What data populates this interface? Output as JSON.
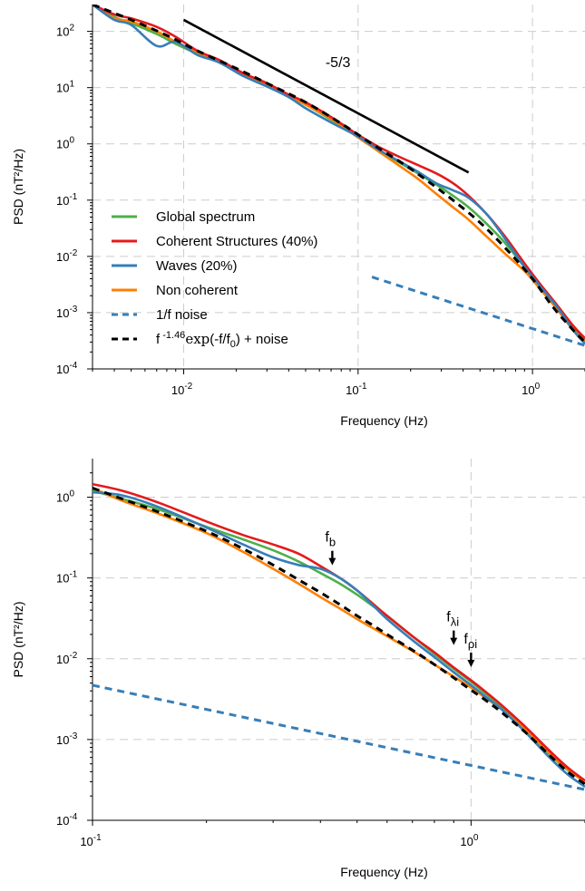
{
  "chart_data": [
    {
      "type": "line",
      "xscale": "log",
      "yscale": "log",
      "xlim": [
        0.003,
        2.0
      ],
      "ylim": [
        0.0001,
        300
      ],
      "xlabel": "Frequency (Hz)",
      "ylabel": "PSD (nT²/Hz)",
      "grid": true,
      "x_ticks": [
        {
          "value": 0.01,
          "base": "10",
          "exp": "-2"
        },
        {
          "value": 0.1,
          "base": "10",
          "exp": "-1"
        },
        {
          "value": 1.0,
          "base": "10",
          "exp": "0"
        }
      ],
      "y_ticks": [
        {
          "value": 0.0001,
          "base": "10",
          "exp": "-4"
        },
        {
          "value": 0.001,
          "base": "10",
          "exp": "-3"
        },
        {
          "value": 0.01,
          "base": "10",
          "exp": "-2"
        },
        {
          "value": 0.1,
          "base": "10",
          "exp": "-1"
        },
        {
          "value": 1,
          "base": "10",
          "exp": "0"
        },
        {
          "value": 10,
          "base": "10",
          "exp": "1"
        },
        {
          "value": 100,
          "base": "10",
          "exp": "2"
        }
      ],
      "legend": {
        "placement": "lower-left",
        "entries": [
          {
            "label": "Global spectrum",
            "color": "#4daf4a",
            "dash": false
          },
          {
            "label": "Coherent Structures (40%)",
            "color": "#e41a1c",
            "dash": false
          },
          {
            "label": "Waves (20%)",
            "color": "#377eb8",
            "dash": false
          },
          {
            "label": "Non coherent",
            "color": "#ff7f00",
            "dash": false
          },
          {
            "label": "1/f noise",
            "color": "#377eb8",
            "dash": true
          },
          {
            "label": "f^{-1.46} exp(-f/f0) + noise",
            "color": "#000000",
            "dash": true
          }
        ],
        "fit_label_parts": {
          "f": "f",
          "exp_val": "-1.46",
          "exp_word": "exp",
          "rest": "(-f/f",
          "sub": "0",
          "tail": ") + noise"
        }
      },
      "slope_line": {
        "label": "-5/3",
        "x": [
          0.01,
          0.43
        ],
        "y": [
          160,
          0.31
        ]
      },
      "series": [
        {
          "name": "Global spectrum",
          "color": "#4daf4a",
          "dash": false,
          "x": [
            0.003,
            0.004,
            0.005,
            0.007,
            0.009,
            0.012,
            0.016,
            0.022,
            0.03,
            0.04,
            0.05,
            0.07,
            0.1,
            0.13,
            0.17,
            0.22,
            0.28,
            0.35,
            0.43,
            0.55,
            0.7,
            0.9,
            1.1,
            1.4,
            1.7,
            2.0
          ],
          "y": [
            300,
            180,
            140,
            90,
            60,
            40,
            28,
            17,
            11,
            7,
            5,
            2.7,
            1.35,
            0.8,
            0.48,
            0.3,
            0.19,
            0.12,
            0.075,
            0.037,
            0.017,
            0.0065,
            0.003,
            0.0012,
            0.00055,
            0.00032
          ]
        },
        {
          "name": "Coherent Structures (40%)",
          "color": "#e41a1c",
          "dash": false,
          "x": [
            0.003,
            0.004,
            0.005,
            0.007,
            0.009,
            0.012,
            0.016,
            0.022,
            0.03,
            0.04,
            0.05,
            0.07,
            0.1,
            0.13,
            0.17,
            0.22,
            0.28,
            0.35,
            0.43,
            0.55,
            0.7,
            0.9,
            1.1,
            1.4,
            1.7,
            2.0
          ],
          "y": [
            300,
            200,
            170,
            120,
            80,
            45,
            31,
            18,
            12,
            7.5,
            5.5,
            3,
            1.45,
            0.9,
            0.6,
            0.42,
            0.3,
            0.2,
            0.12,
            0.055,
            0.022,
            0.0075,
            0.0033,
            0.0013,
            0.0006,
            0.00035
          ]
        },
        {
          "name": "Waves (20%)",
          "color": "#377eb8",
          "dash": false,
          "x": [
            0.003,
            0.004,
            0.005,
            0.007,
            0.009,
            0.012,
            0.016,
            0.022,
            0.03,
            0.04,
            0.05,
            0.07,
            0.1,
            0.13,
            0.17,
            0.22,
            0.28,
            0.35,
            0.43,
            0.55,
            0.7,
            0.9,
            1.1,
            1.4,
            1.7,
            2.0
          ],
          "y": [
            300,
            160,
            130,
            55,
            65,
            38,
            28,
            16,
            10.5,
            6.8,
            4.3,
            2.4,
            1.35,
            0.8,
            0.5,
            0.32,
            0.2,
            0.15,
            0.11,
            0.055,
            0.02,
            0.0065,
            0.003,
            0.0012,
            0.0005,
            0.00028
          ]
        },
        {
          "name": "Non coherent",
          "color": "#ff7f00",
          "dash": false,
          "x": [
            0.003,
            0.004,
            0.005,
            0.007,
            0.009,
            0.012,
            0.016,
            0.022,
            0.03,
            0.04,
            0.05,
            0.07,
            0.1,
            0.13,
            0.17,
            0.22,
            0.28,
            0.35,
            0.43,
            0.55,
            0.7,
            0.9,
            1.1,
            1.4,
            1.7,
            2.0
          ],
          "y": [
            300,
            170,
            150,
            100,
            65,
            42,
            28,
            17,
            11,
            7.2,
            5,
            2.8,
            1.3,
            0.75,
            0.42,
            0.24,
            0.13,
            0.075,
            0.045,
            0.022,
            0.011,
            0.0055,
            0.0027,
            0.0011,
            0.0005,
            0.0003
          ]
        },
        {
          "name": "1/f noise",
          "color": "#377eb8",
          "dash": true,
          "x": [
            0.12,
            2.0
          ],
          "y": [
            0.0043,
            0.00026
          ]
        },
        {
          "name": "f^{-1.46} exp(-f/f0) + noise",
          "color": "#000000",
          "dash": true,
          "x": [
            0.003,
            0.005,
            0.008,
            0.012,
            0.02,
            0.03,
            0.05,
            0.08,
            0.12,
            0.18,
            0.25,
            0.35,
            0.5,
            0.7,
            1.0,
            1.3,
            1.7,
            2.0
          ],
          "y": [
            300,
            160,
            85,
            45,
            22,
            12,
            5.5,
            2.3,
            1.0,
            0.45,
            0.22,
            0.1,
            0.04,
            0.014,
            0.004,
            0.0013,
            0.0005,
            0.0003
          ]
        }
      ]
    },
    {
      "type": "line",
      "xscale": "log",
      "yscale": "log",
      "xlim": [
        0.1,
        2.0
      ],
      "ylim": [
        0.0001,
        3.0
      ],
      "xlabel": "Frequency (Hz)",
      "ylabel": "PSD (nT²/Hz)",
      "grid": true,
      "x_ticks": [
        {
          "value": 0.1,
          "base": "10",
          "exp": "-1"
        },
        {
          "value": 1.0,
          "base": "10",
          "exp": "0"
        }
      ],
      "y_ticks": [
        {
          "value": 0.0001,
          "base": "10",
          "exp": "-4"
        },
        {
          "value": 0.001,
          "base": "10",
          "exp": "-3"
        },
        {
          "value": 0.01,
          "base": "10",
          "exp": "-2"
        },
        {
          "value": 0.1,
          "base": "10",
          "exp": "-1"
        },
        {
          "value": 1,
          "base": "10",
          "exp": "0"
        }
      ],
      "annotations": [
        {
          "main": "f",
          "sub": "b",
          "x": 0.43,
          "y": 0.155
        },
        {
          "main": "f",
          "sub": "λi",
          "x": 0.9,
          "y": 0.016
        },
        {
          "main": "f",
          "sub": "ρi",
          "x": 1.0,
          "y": 0.0085
        }
      ],
      "series": [
        {
          "name": "Global spectrum",
          "color": "#4daf4a",
          "dash": false,
          "x": [
            0.1,
            0.12,
            0.15,
            0.2,
            0.25,
            0.3,
            0.35,
            0.4,
            0.45,
            0.5,
            0.55,
            0.6,
            0.7,
            0.8,
            0.9,
            1.0,
            1.1,
            1.2,
            1.4,
            1.6,
            1.8,
            2.0
          ],
          "y": [
            1.2,
            0.95,
            0.7,
            0.43,
            0.3,
            0.22,
            0.16,
            0.115,
            0.085,
            0.062,
            0.045,
            0.034,
            0.019,
            0.0115,
            0.0075,
            0.0052,
            0.0036,
            0.0026,
            0.0013,
            0.00068,
            0.00042,
            0.0003
          ]
        },
        {
          "name": "Coherent Structures (40%)",
          "color": "#e41a1c",
          "dash": false,
          "x": [
            0.1,
            0.12,
            0.15,
            0.2,
            0.25,
            0.3,
            0.35,
            0.4,
            0.45,
            0.5,
            0.55,
            0.6,
            0.7,
            0.8,
            0.9,
            1.0,
            1.1,
            1.2,
            1.4,
            1.6,
            1.8,
            2.0
          ],
          "y": [
            1.45,
            1.2,
            0.85,
            0.5,
            0.34,
            0.26,
            0.2,
            0.14,
            0.1,
            0.07,
            0.048,
            0.034,
            0.019,
            0.012,
            0.0078,
            0.0054,
            0.0038,
            0.0027,
            0.0014,
            0.00075,
            0.00045,
            0.00031
          ]
        },
        {
          "name": "Waves (20%)",
          "color": "#377eb8",
          "dash": false,
          "x": [
            0.1,
            0.12,
            0.15,
            0.2,
            0.25,
            0.3,
            0.35,
            0.4,
            0.45,
            0.5,
            0.55,
            0.6,
            0.7,
            0.8,
            0.9,
            1.0,
            1.1,
            1.2,
            1.4,
            1.6,
            1.8,
            2.0
          ],
          "y": [
            1.15,
            1.05,
            0.75,
            0.42,
            0.26,
            0.18,
            0.145,
            0.13,
            0.1,
            0.07,
            0.046,
            0.031,
            0.017,
            0.0105,
            0.0068,
            0.0047,
            0.0033,
            0.0024,
            0.0012,
            0.00062,
            0.00037,
            0.00026
          ]
        },
        {
          "name": "Non coherent",
          "color": "#ff7f00",
          "dash": false,
          "x": [
            0.1,
            0.12,
            0.15,
            0.2,
            0.25,
            0.3,
            0.35,
            0.4,
            0.45,
            0.5,
            0.55,
            0.6,
            0.7,
            0.8,
            0.9,
            1.0,
            1.1,
            1.2,
            1.4,
            1.6,
            1.8,
            2.0
          ],
          "y": [
            1.3,
            0.9,
            0.62,
            0.36,
            0.21,
            0.13,
            0.085,
            0.058,
            0.042,
            0.031,
            0.024,
            0.019,
            0.0125,
            0.0085,
            0.006,
            0.0044,
            0.0032,
            0.0024,
            0.0013,
            0.0007,
            0.00043,
            0.0003
          ]
        },
        {
          "name": "1/f noise",
          "color": "#377eb8",
          "dash": true,
          "x": [
            0.1,
            2.0
          ],
          "y": [
            0.0047,
            0.00024
          ]
        },
        {
          "name": "f^{-1.46} exp(-f/f0) + noise",
          "color": "#000000",
          "dash": true,
          "x": [
            0.1,
            0.12,
            0.15,
            0.2,
            0.25,
            0.3,
            0.35,
            0.4,
            0.45,
            0.5,
            0.55,
            0.6,
            0.7,
            0.8,
            0.9,
            1.0,
            1.1,
            1.2,
            1.4,
            1.6,
            1.8,
            2.0
          ],
          "y": [
            1.3,
            0.95,
            0.65,
            0.38,
            0.23,
            0.145,
            0.095,
            0.066,
            0.047,
            0.034,
            0.026,
            0.02,
            0.0128,
            0.0085,
            0.0058,
            0.0041,
            0.003,
            0.0022,
            0.0012,
            0.00066,
            0.0004,
            0.00028
          ]
        }
      ]
    }
  ]
}
